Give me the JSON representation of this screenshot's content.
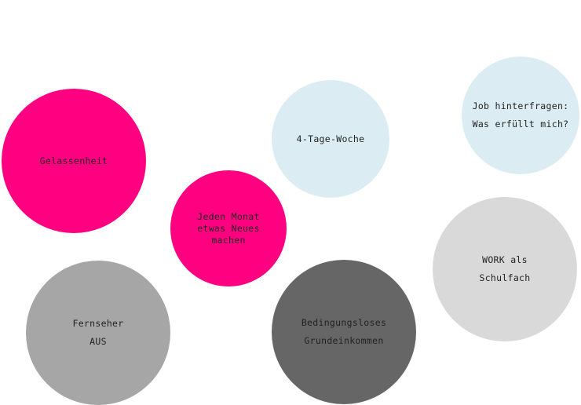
{
  "colors": {
    "pink": "#ff0080",
    "light_blue": "#dbedf3",
    "gray": "#a6a6a6",
    "dark_gray": "#666666",
    "light_gray": "#d9d9d9"
  },
  "bubbles": [
    {
      "label": "Gelassenheit",
      "color": "#ff0080"
    },
    {
      "label": "Jeden Monat\netwas Neues\n machen",
      "color": "#ff0080"
    },
    {
      "label": "4-Tage-Woche",
      "color": "#dbedf3"
    },
    {
      "label": "Job hinterfragen:\n Was erfüllt mich?",
      "color": "#dbedf3"
    },
    {
      "label": "WORK als\nSchulfach",
      "color": "#d9d9d9"
    },
    {
      "label": "Fernseher\nAUS",
      "color": "#a6a6a6"
    },
    {
      "label": "Bedingungsloses\nGrundeinkommen",
      "color": "#666666"
    }
  ]
}
